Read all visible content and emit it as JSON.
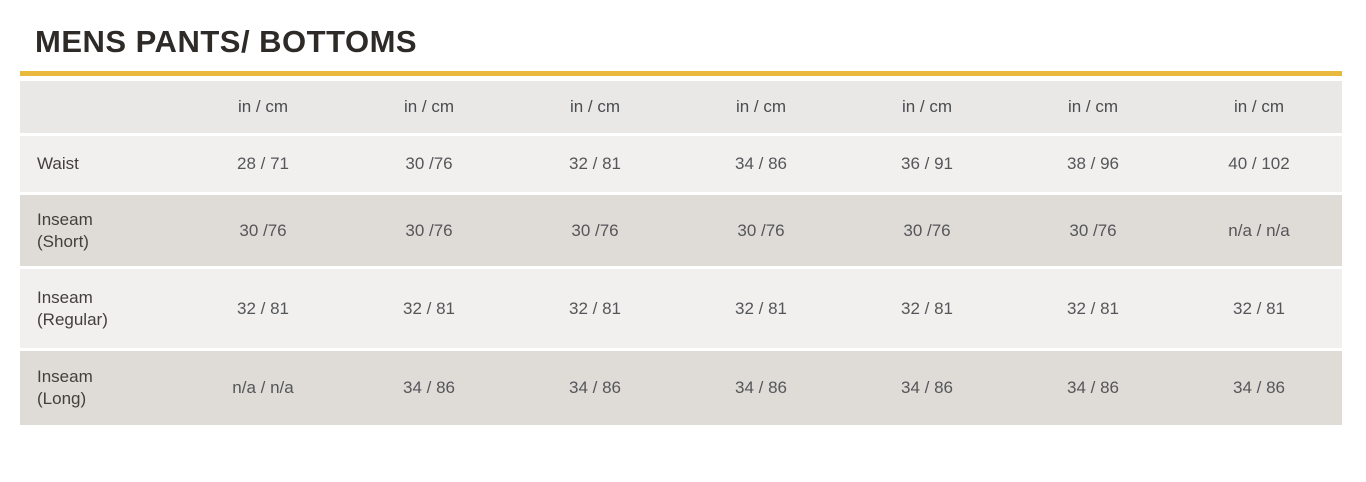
{
  "colors": {
    "accent": "#e8b93c",
    "title_text": "#2d2a27",
    "header_row_bg": "#e9e8e6",
    "light_row_bg": "#f1f0ee",
    "dark_row_bg": "#dfdbd6",
    "header_text": "#4a4c50",
    "label_text": "#433f3d",
    "cell_text": "#55565a"
  },
  "chart_data": {
    "type": "table",
    "title": "MENS PANTS/ BOTTOMS",
    "unit_header": [
      "in / cm",
      "in / cm",
      "in / cm",
      "in / cm",
      "in / cm",
      "in / cm",
      "in / cm"
    ],
    "rows": [
      {
        "label": "Waist",
        "values": [
          "28 / 71",
          "30 /76",
          "32 / 81",
          "34 / 86",
          "36 / 91",
          "38 / 96",
          "40 / 102"
        ]
      },
      {
        "label": "Inseam (Short)",
        "values": [
          "30 /76",
          "30 /76",
          "30 /76",
          "30 /76",
          "30 /76",
          "30 /76",
          "n/a / n/a"
        ]
      },
      {
        "label": "Inseam (Regular)",
        "values": [
          "32 / 81",
          "32 / 81",
          "32 / 81",
          "32 / 81",
          "32 / 81",
          "32 / 81",
          "32 / 81"
        ]
      },
      {
        "label": "Inseam (Long)",
        "values": [
          "n/a / n/a",
          "34 / 86",
          "34 / 86",
          "34 / 86",
          "34 / 86",
          "34 / 86",
          "34 / 86"
        ]
      }
    ]
  }
}
